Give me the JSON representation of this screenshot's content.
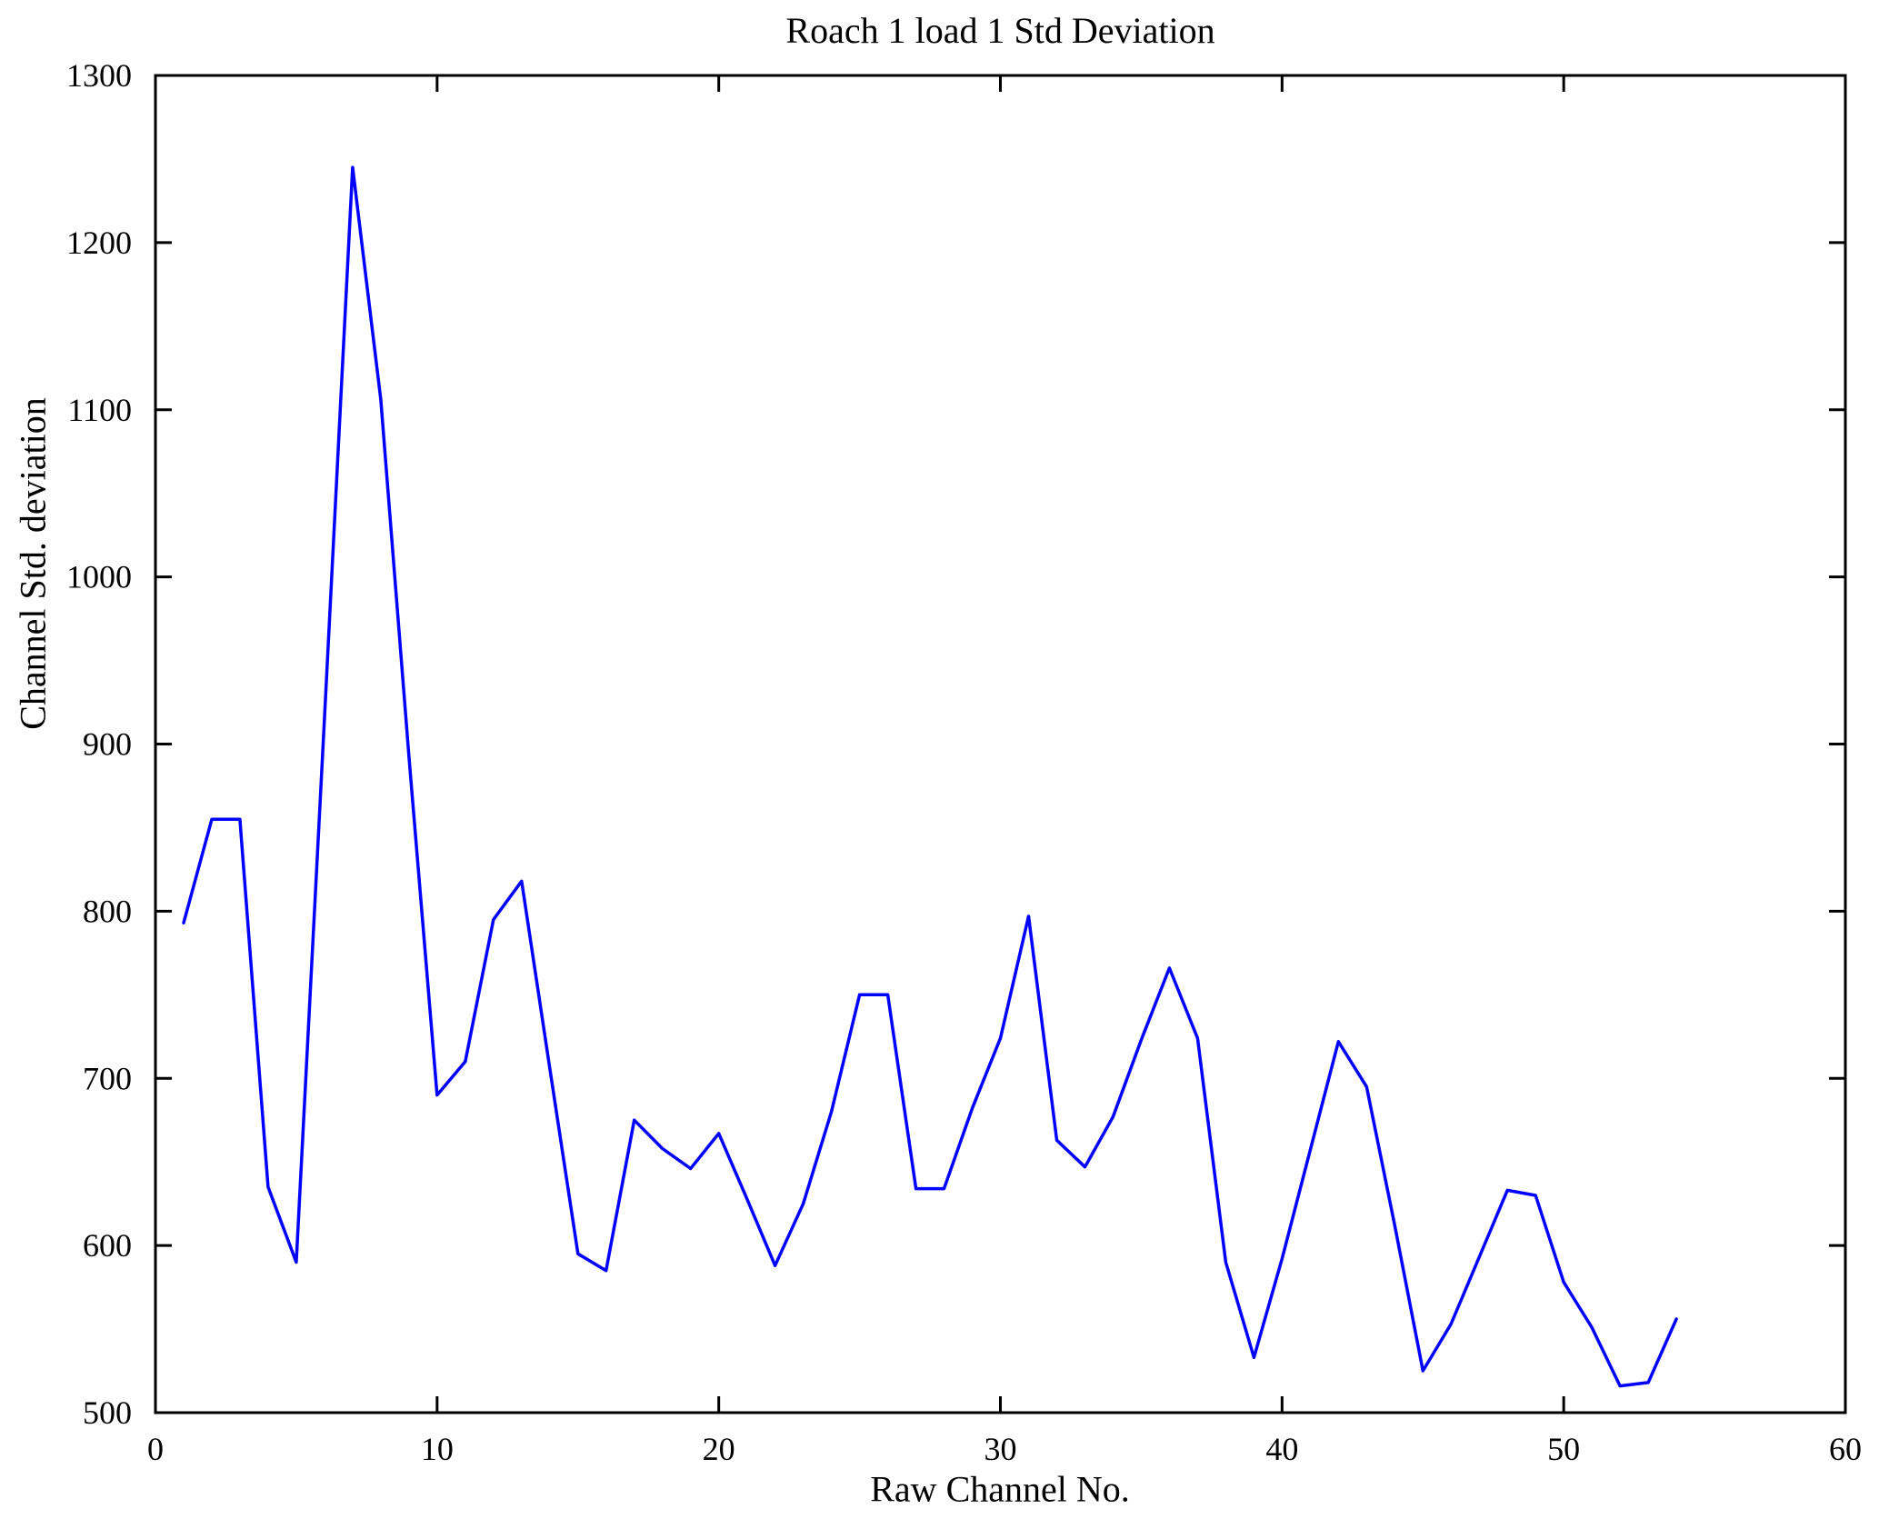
{
  "figure": {
    "background": "#ffffff"
  },
  "chart_data": {
    "type": "line",
    "title": "Roach 1 load 1 Std Deviation",
    "xlabel": "Raw Channel No.",
    "ylabel": "Channel Std. deviation",
    "xlim": [
      0,
      60
    ],
    "ylim": [
      500,
      1300
    ],
    "xticks": [
      0,
      10,
      20,
      30,
      40,
      50,
      60
    ],
    "yticks": [
      500,
      600,
      700,
      800,
      900,
      1000,
      1100,
      1200,
      1300
    ],
    "grid": false,
    "legend_position": "none",
    "line_color": "#0000FF",
    "frame_color": "#000000",
    "series": [
      {
        "name": "channel-std-deviation",
        "x": [
          1,
          2,
          3,
          4,
          5,
          6,
          7,
          8,
          9,
          10,
          11,
          12,
          13,
          14,
          15,
          16,
          17,
          18,
          19,
          20,
          21,
          22,
          23,
          24,
          25,
          26,
          27,
          28,
          29,
          30,
          31,
          32,
          33,
          34,
          35,
          36,
          37,
          38,
          39,
          40,
          41,
          42,
          43,
          44,
          45,
          46,
          47,
          48,
          49,
          50,
          51,
          52,
          53,
          54
        ],
        "values": [
          793,
          855,
          855,
          635,
          590,
          915,
          1245,
          1106,
          893,
          690,
          710,
          795,
          818,
          706,
          595,
          585,
          675,
          658,
          646,
          667,
          628,
          588,
          625,
          680,
          750,
          750,
          634,
          634,
          682,
          724,
          797,
          663,
          647,
          677,
          723,
          766,
          724,
          590,
          533,
          592,
          657,
          722,
          695,
          612,
          525,
          553,
          593,
          633,
          630,
          578,
          551,
          516,
          518,
          556
        ]
      }
    ]
  }
}
